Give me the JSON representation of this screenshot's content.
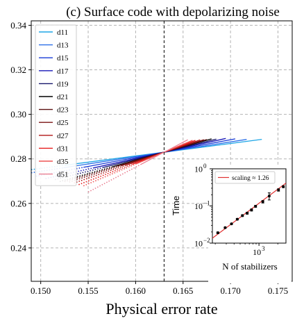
{
  "chart_data": [
    {
      "type": "line",
      "title": "(c) Surface code with depolarizing noise",
      "xlabel": "Physical error rate",
      "ylabel": "",
      "xlim": [
        0.149,
        0.1765
      ],
      "ylim": [
        0.225,
        0.342
      ],
      "xticks": [
        0.15,
        0.155,
        0.16,
        0.165,
        0.17,
        0.175
      ],
      "xtick_labels": [
        "0.150",
        "0.155",
        "0.160",
        "0.165",
        "0.170",
        "0.175"
      ],
      "yticks": [
        0.24,
        0.26,
        0.28,
        0.3,
        0.32,
        0.34
      ],
      "ytick_labels": [
        "0.24",
        "0.26",
        "0.28",
        "0.30",
        "0.32",
        "0.34"
      ],
      "grid": true,
      "legend_position": "top-left",
      "threshold_x": 0.163,
      "crossing": {
        "x": 0.163,
        "y": 0.283
      },
      "note": "Solid lines are fits in the fitted region, dotted lines are their extrapolation; all pass near the threshold point.",
      "series": [
        {
          "name": "d11",
          "color": "#1ea6e6",
          "slope": 0.56,
          "dotted_left_x": 0.149,
          "solid_range": [
            0.1525,
            0.1733
          ]
        },
        {
          "name": "d13",
          "color": "#2b6fe8",
          "slope": 0.66,
          "dotted_left_x": 0.149,
          "solid_range": [
            0.1524,
            0.1717
          ]
        },
        {
          "name": "d15",
          "color": "#1538d6",
          "slope": 0.8,
          "dotted_left_x": 0.1495,
          "solid_range": [
            0.1545,
            0.1705
          ]
        },
        {
          "name": "d17",
          "color": "#1818b8",
          "slope": 0.95,
          "dotted_left_x": 0.1505,
          "solid_range": [
            0.1555,
            0.1695
          ]
        },
        {
          "name": "d19",
          "color": "#16166a",
          "slope": 1.07,
          "dotted_left_x": 0.1515,
          "solid_range": [
            0.1565,
            0.1685
          ]
        },
        {
          "name": "d21",
          "color": "#000000",
          "slope": 1.2,
          "dotted_left_x": 0.152,
          "solid_range": [
            0.1575,
            0.168
          ]
        },
        {
          "name": "d23",
          "color": "#5a1010",
          "slope": 1.26,
          "dotted_left_x": 0.1525,
          "solid_range": [
            0.158,
            0.1675
          ]
        },
        {
          "name": "d25",
          "color": "#7a1212",
          "slope": 1.34,
          "dotted_left_x": 0.153,
          "solid_range": [
            0.1585,
            0.1672
          ]
        },
        {
          "name": "d27",
          "color": "#b01515",
          "slope": 1.46,
          "dotted_left_x": 0.1535,
          "solid_range": [
            0.159,
            0.1668
          ]
        },
        {
          "name": "d31",
          "color": "#e61a1a",
          "slope": 1.62,
          "dotted_left_x": 0.154,
          "solid_range": [
            0.1597,
            0.1663
          ]
        },
        {
          "name": "d35",
          "color": "#ee5555",
          "slope": 1.78,
          "dotted_left_x": 0.1545,
          "solid_range": [
            0.16,
            0.166
          ]
        },
        {
          "name": "d51",
          "color": "#ea7f92",
          "slope": 2.24,
          "dotted_left_x": 0.155,
          "solid_range": [
            0.1605,
            0.1655
          ]
        }
      ]
    },
    {
      "type": "scatter",
      "title": "",
      "xlabel": "N of stabilizers",
      "ylabel": "Time",
      "xscale": "log",
      "yscale": "log",
      "xlim": [
        180,
        2700
      ],
      "ylim": [
        0.01,
        1.0
      ],
      "yticks": [
        0.01,
        0.1,
        1.0
      ],
      "ytick_labels": [
        "10",
        "10",
        "10"
      ],
      "ytick_exponents": [
        "−2",
        "−1",
        "0"
      ],
      "xticks": [
        1000
      ],
      "xtick_labels": [
        "10"
      ],
      "xtick_exponents": [
        "3"
      ],
      "legend_position": "top-left",
      "fit_label": "scaling ≈ 1.26",
      "fit_color": "#e03030",
      "fit_slope": 1.26,
      "fit_anchor": {
        "x": 220,
        "y": 0.0175
      },
      "points": [
        {
          "x": 220,
          "y": 0.019,
          "err": 0.001
        },
        {
          "x": 288,
          "y": 0.026,
          "err": 0.001
        },
        {
          "x": 364,
          "y": 0.033,
          "err": 0.001
        },
        {
          "x": 450,
          "y": 0.044,
          "err": 0.002
        },
        {
          "x": 544,
          "y": 0.055,
          "err": 0.003
        },
        {
          "x": 648,
          "y": 0.064,
          "err": 0.004
        },
        {
          "x": 760,
          "y": 0.078,
          "err": 0.005
        },
        {
          "x": 882,
          "y": 0.098,
          "err": 0.006
        },
        {
          "x": 1152,
          "y": 0.13,
          "err": 0.01
        },
        {
          "x": 1458,
          "y": 0.185,
          "err": 0.04
        },
        {
          "x": 2052,
          "y": 0.27,
          "err": 0.02
        },
        {
          "x": 2450,
          "y": 0.33,
          "err": 0.02
        }
      ]
    }
  ]
}
